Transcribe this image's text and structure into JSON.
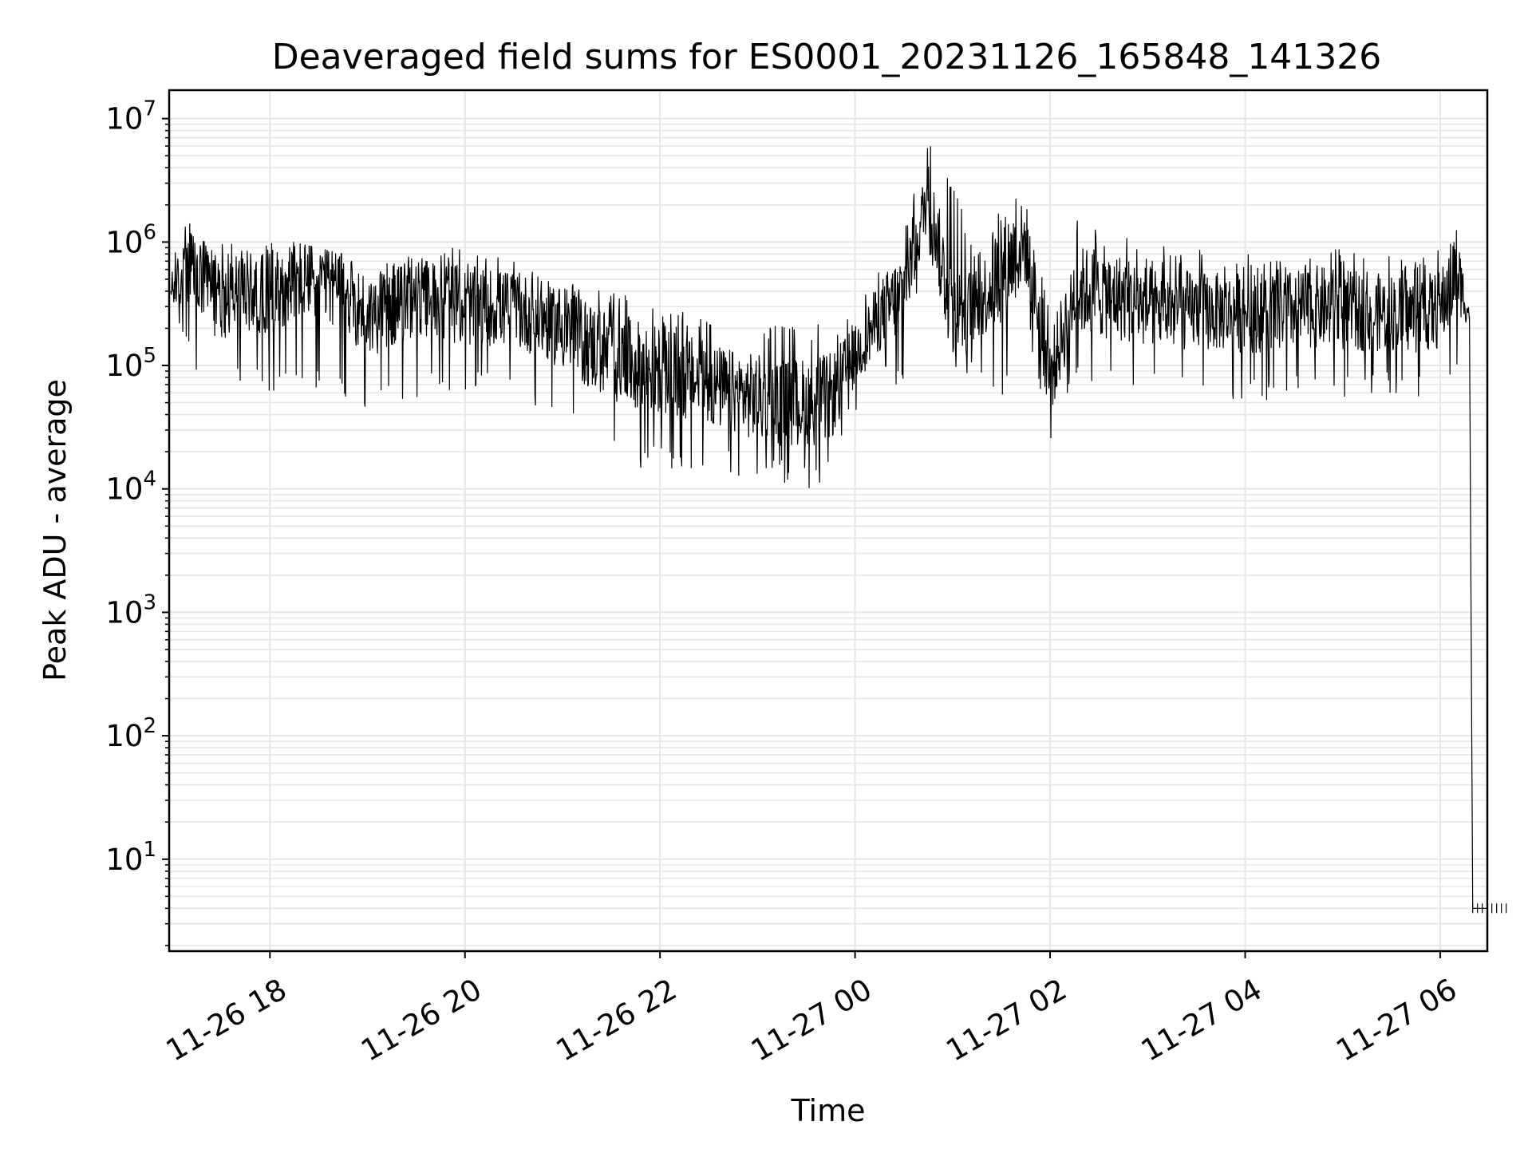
{
  "chart_data": {
    "type": "line",
    "title": "Deaveraged field sums for ES0001_20231126_165848_141326",
    "xlabel": "Time",
    "ylabel": "Peak ADU - average",
    "yscale": "log",
    "ylim": [
      1.8,
      17000000
    ],
    "xlim": [
      "2023-11-26 16:58",
      "2023-11-27 06:29"
    ],
    "x_ticks": [
      {
        "at": "2023-11-26 18:00",
        "label": "11-26 18"
      },
      {
        "at": "2023-11-26 20:00",
        "label": "11-26 20"
      },
      {
        "at": "2023-11-26 22:00",
        "label": "11-26 22"
      },
      {
        "at": "2023-11-27 00:00",
        "label": "11-27 00"
      },
      {
        "at": "2023-11-27 02:00",
        "label": "11-27 02"
      },
      {
        "at": "2023-11-27 04:00",
        "label": "11-27 04"
      },
      {
        "at": "2023-11-27 06:00",
        "label": "11-27 06"
      }
    ],
    "y_ticks": [
      {
        "value": 10,
        "base": "10",
        "exp": "1"
      },
      {
        "value": 100,
        "base": "10",
        "exp": "2"
      },
      {
        "value": 1000,
        "base": "10",
        "exp": "3"
      },
      {
        "value": 10000,
        "base": "10",
        "exp": "4"
      },
      {
        "value": 100000,
        "base": "10",
        "exp": "5"
      },
      {
        "value": 1000000,
        "base": "10",
        "exp": "6"
      },
      {
        "value": 10000000,
        "base": "10",
        "exp": "7"
      }
    ],
    "grid": "major and minor",
    "line_color": "#000000",
    "grid_color": "#e6e6e6",
    "series": [
      {
        "name": "",
        "envelope_note_units": "x as time, y in ADU",
        "x": [
          "2023-11-26 16:59",
          "2023-11-26 17:10",
          "2023-11-26 17:20",
          "2023-11-26 17:30",
          "2023-11-26 17:40",
          "2023-11-26 17:50",
          "2023-11-26 18:00",
          "2023-11-26 18:15",
          "2023-11-26 18:30",
          "2023-11-26 18:45",
          "2023-11-26 19:00",
          "2023-11-26 19:15",
          "2023-11-26 19:30",
          "2023-11-26 19:45",
          "2023-11-26 20:00",
          "2023-11-26 20:15",
          "2023-11-26 20:30",
          "2023-11-26 20:45",
          "2023-11-26 21:00",
          "2023-11-26 21:15",
          "2023-11-26 21:30",
          "2023-11-26 21:45",
          "2023-11-26 22:00",
          "2023-11-26 22:15",
          "2023-11-26 22:30",
          "2023-11-26 22:45",
          "2023-11-26 23:00",
          "2023-11-26 23:15",
          "2023-11-26 23:30",
          "2023-11-26 23:45",
          "2023-11-27 00:00",
          "2023-11-27 00:15",
          "2023-11-27 00:30",
          "2023-11-27 00:45",
          "2023-11-27 01:00",
          "2023-11-27 01:15",
          "2023-11-27 01:30",
          "2023-11-27 01:45",
          "2023-11-27 02:00",
          "2023-11-27 02:15",
          "2023-11-27 02:30",
          "2023-11-27 02:45",
          "2023-11-27 03:00",
          "2023-11-27 03:15",
          "2023-11-27 03:30",
          "2023-11-27 03:45",
          "2023-11-27 04:00",
          "2023-11-27 04:15",
          "2023-11-27 04:30",
          "2023-11-27 04:45",
          "2023-11-27 05:00",
          "2023-11-27 05:15",
          "2023-11-27 05:30",
          "2023-11-27 05:45",
          "2023-11-27 06:00",
          "2023-11-27 06:10",
          "2023-11-27 06:18",
          "2023-11-27 06:20",
          "2023-11-27 06:29"
        ],
        "y_high": [
          700000,
          1600000,
          1200000,
          1000000,
          1000000,
          1000000,
          1000000,
          1000000,
          900000,
          800000,
          700000,
          700000,
          800000,
          900000,
          900000,
          800000,
          700000,
          600000,
          500000,
          450000,
          400000,
          350000,
          300000,
          280000,
          250000,
          240000,
          230000,
          220000,
          220000,
          230000,
          300000,
          800000,
          1200000,
          7500000,
          3000000,
          900000,
          2000000,
          3500000,
          300000,
          1500000,
          1500000,
          1200000,
          1000000,
          900000,
          900000,
          800000,
          800000,
          800000,
          850000,
          1000000,
          900000,
          800000,
          850000,
          800000,
          900000,
          1600000,
          400000,
          4,
          4
        ],
        "y_low": [
          230000,
          100000,
          60000,
          55000,
          60000,
          60000,
          55000,
          60000,
          60000,
          50000,
          40000,
          45000,
          50000,
          60000,
          60000,
          55000,
          50000,
          40000,
          30000,
          22000,
          18000,
          15000,
          14000,
          14000,
          14000,
          13000,
          12000,
          11000,
          10000,
          11000,
          40000,
          70000,
          60000,
          900000,
          70000,
          80000,
          50000,
          200000,
          20000,
          80000,
          60000,
          60000,
          60000,
          55000,
          60000,
          55000,
          50000,
          50000,
          55000,
          60000,
          55000,
          55000,
          60000,
          55000,
          60000,
          80000,
          200000,
          4,
          4
        ],
        "y_typical": [
          400000,
          600000,
          450000,
          350000,
          400000,
          400000,
          400000,
          500000,
          500000,
          400000,
          250000,
          300000,
          350000,
          350000,
          300000,
          300000,
          280000,
          250000,
          200000,
          150000,
          120000,
          100000,
          90000,
          80000,
          70000,
          60000,
          55000,
          50000,
          50000,
          55000,
          120000,
          250000,
          400000,
          2500000,
          250000,
          300000,
          600000,
          1000000,
          80000,
          400000,
          400000,
          350000,
          300000,
          280000,
          280000,
          270000,
          270000,
          270000,
          280000,
          300000,
          280000,
          270000,
          270000,
          260000,
          280000,
          600000,
          250000,
          4,
          4
        ]
      }
    ]
  }
}
